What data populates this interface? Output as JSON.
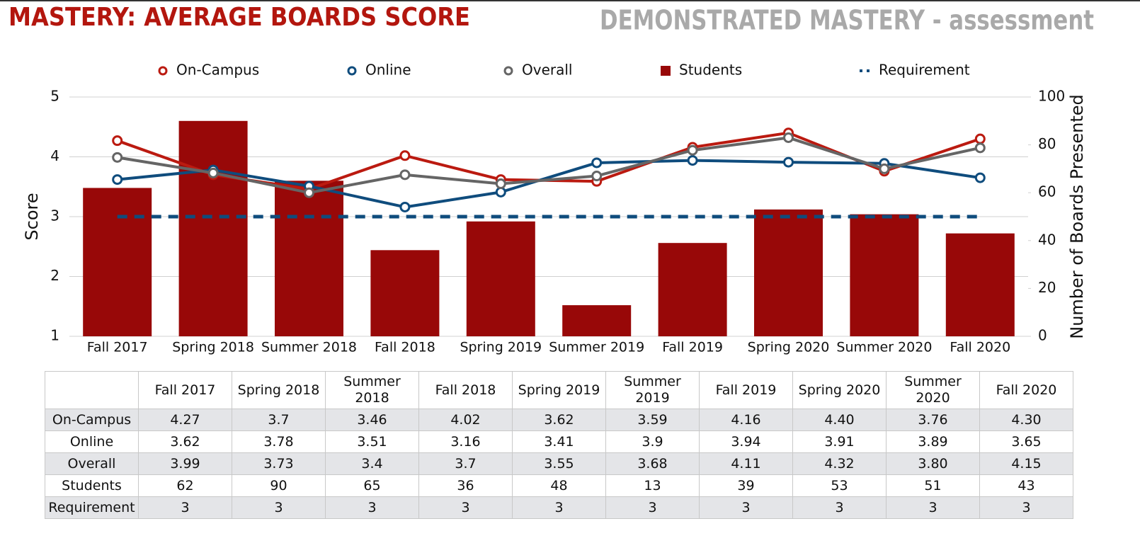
{
  "chart_data": {
    "type": "combo",
    "title": "MASTERY: AVERAGE BOARDS SCORE",
    "subtitle": "DEMONSTRATED MASTERY - assessment",
    "y_label": "Score",
    "y2_label": "Number of Boards Presented",
    "categories": [
      "Fall 2017",
      "Spring 2018",
      "Summer 2018",
      "Fall 2018",
      "Spring 2019",
      "Summer 2019",
      "Fall 2019",
      "Spring 2020",
      "Summer 2020",
      "Fall 2020"
    ],
    "series": [
      {
        "name": "On-Campus",
        "kind": "line",
        "color": "#bb1a10",
        "values": [
          4.27,
          3.7,
          3.46,
          4.02,
          3.62,
          3.59,
          4.16,
          4.4,
          3.76,
          4.3
        ],
        "value_labels": [
          "4.27",
          "3.7",
          "3.46",
          "4.02",
          "3.62",
          "3.59",
          "4.16",
          "4.40",
          "3.76",
          "4.30"
        ]
      },
      {
        "name": "Online",
        "kind": "line",
        "color": "#0f4c7d",
        "values": [
          3.62,
          3.78,
          3.51,
          3.16,
          3.41,
          3.9,
          3.94,
          3.91,
          3.89,
          3.65
        ]
      },
      {
        "name": "Overall",
        "kind": "line",
        "color": "#656565",
        "values": [
          3.99,
          3.73,
          3.4,
          3.7,
          3.55,
          3.68,
          4.11,
          4.32,
          3.8,
          4.15
        ],
        "value_labels": [
          "3.99",
          "3.73",
          "3.4",
          "3.7",
          "3.55",
          "3.68",
          "4.11",
          "4.32",
          "3.80",
          "4.15"
        ]
      },
      {
        "name": "Students",
        "kind": "bar",
        "axis": "y2",
        "color": "#980808",
        "values": [
          62,
          90,
          65,
          36,
          48,
          13,
          39,
          53,
          51,
          43
        ]
      },
      {
        "name": "Requirement",
        "kind": "dashed",
        "color": "#0f4c7d",
        "values": [
          3,
          3,
          3,
          3,
          3,
          3,
          3,
          3,
          3,
          3
        ]
      }
    ],
    "ylim": [
      1,
      5
    ],
    "yticks": [
      1,
      2,
      3,
      4,
      5
    ],
    "y2lim": [
      0,
      100
    ],
    "y2ticks": [
      0,
      20,
      40,
      60,
      80,
      100
    ],
    "grid": true,
    "legend": "top"
  }
}
